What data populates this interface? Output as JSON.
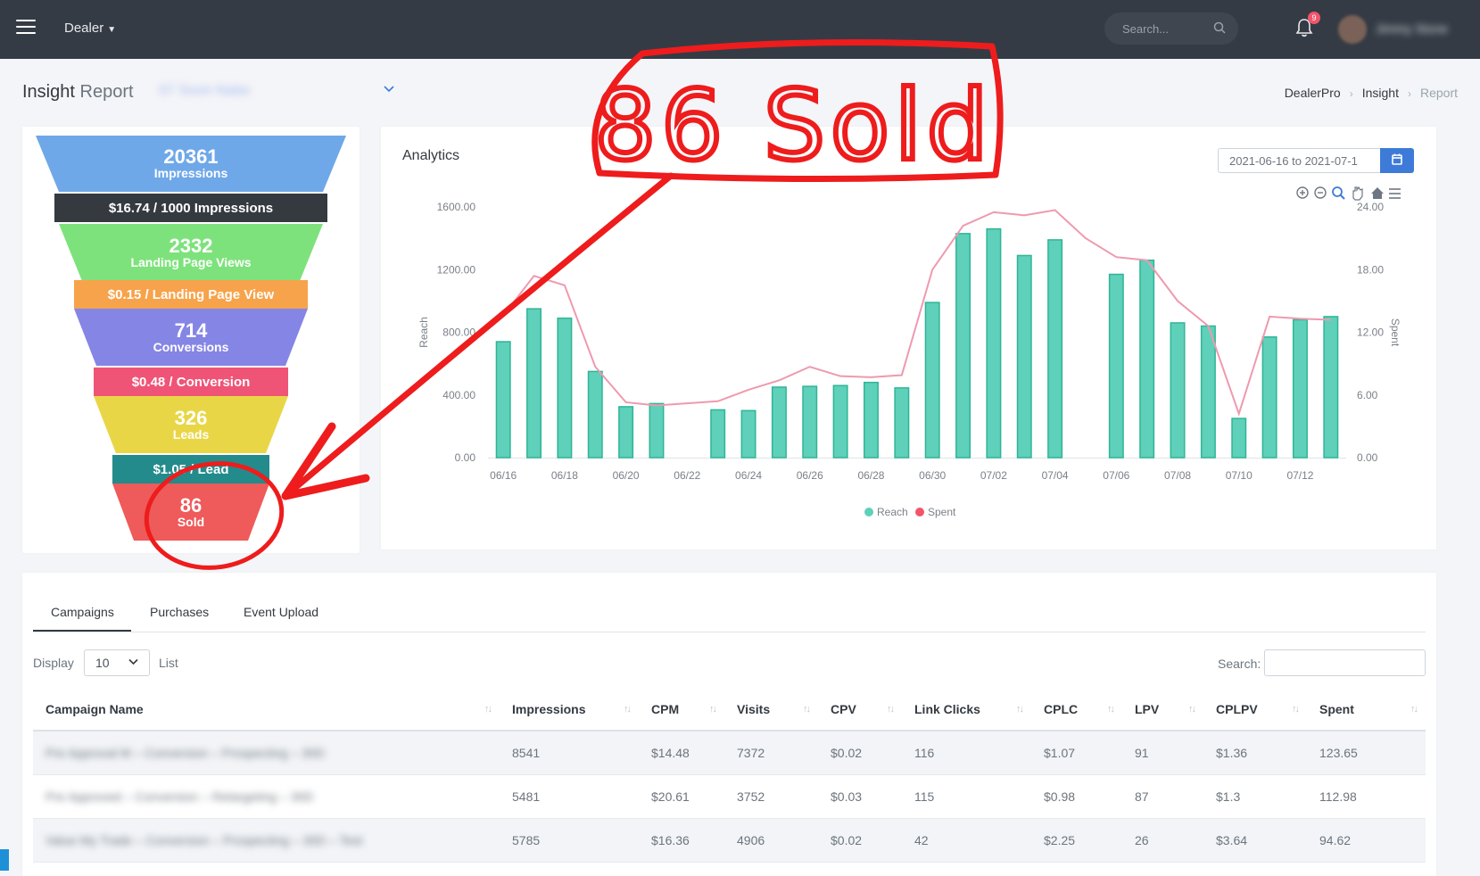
{
  "topbar": {
    "menu_label": "Dealer",
    "search_placeholder": "Search...",
    "notification_count": "9",
    "username": "Jimmy Stone"
  },
  "page": {
    "title_main": "Insight",
    "title_sub": "Report",
    "selected_report": "07 Soon Nabe",
    "breadcrumb": [
      "DealerPro",
      "Insight",
      "Report"
    ]
  },
  "funnel": {
    "stages": [
      {
        "value": "20361",
        "label": "Impressions",
        "color": "#6fa8e8"
      },
      {
        "value": "2332",
        "label": "Landing Page Views",
        "color": "#7ee27c"
      },
      {
        "value": "714",
        "label": "Conversions",
        "color": "#8585e6"
      },
      {
        "value": "326",
        "label": "Leads",
        "color": "#e9d646"
      },
      {
        "value": "86",
        "label": "Sold",
        "color": "#ef5a5a"
      }
    ],
    "rates": [
      {
        "text": "$16.74 / 1000 Impressions",
        "color": "#343a40"
      },
      {
        "text": "$0.15 / Landing Page View",
        "color": "#f7a34b"
      },
      {
        "text": "$0.48 / Conversion",
        "color": "#ef5477"
      },
      {
        "text": "$1.05 / Lead",
        "color": "#238b8b"
      }
    ]
  },
  "analytics": {
    "title": "Analytics",
    "date_range": "2021-06-16 to 2021-07-1"
  },
  "chart_data": {
    "type": "bar",
    "x": [
      "06/16",
      "06/17",
      "06/18",
      "06/19",
      "06/20",
      "06/21",
      "06/22",
      "06/23",
      "06/24",
      "06/25",
      "06/26",
      "06/27",
      "06/28",
      "06/29",
      "06/30",
      "07/01",
      "07/02",
      "07/03",
      "07/04",
      "07/05",
      "07/06",
      "07/07",
      "07/08",
      "07/09",
      "07/10",
      "07/11",
      "07/12",
      "07/13"
    ],
    "x_tick_labels": [
      "06/16",
      "06/18",
      "06/20",
      "06/22",
      "06/24",
      "06/26",
      "06/28",
      "06/30",
      "07/02",
      "07/04",
      "07/06",
      "07/08",
      "07/10",
      "07/12"
    ],
    "series": [
      {
        "name": "Reach",
        "type": "bar",
        "axis": "left",
        "color": "#5fd0ba",
        "values": [
          740,
          950,
          890,
          550,
          325,
          345,
          null,
          305,
          300,
          450,
          455,
          460,
          480,
          445,
          990,
          1430,
          1460,
          1290,
          1390,
          null,
          1170,
          1260,
          860,
          840,
          250,
          770,
          880,
          900
        ]
      },
      {
        "name": "Spent",
        "type": "line",
        "axis": "right",
        "color": "#ee9aae",
        "values": [
          13.6,
          17.4,
          16.5,
          8.7,
          5.3,
          5.0,
          5.2,
          5.4,
          6.5,
          7.4,
          8.7,
          7.8,
          7.7,
          7.9,
          18.0,
          22.2,
          23.5,
          23.2,
          23.7,
          21.0,
          19.2,
          18.9,
          15.0,
          12.6,
          4.2,
          13.5,
          13.3,
          13.2
        ]
      }
    ],
    "ylabel": "Reach",
    "y2label": "Spent",
    "ylim": [
      0,
      1600
    ],
    "y2lim": [
      0,
      24
    ],
    "y_ticks": [
      "0.00",
      "400.00",
      "800.00",
      "1200.00",
      "1600.00"
    ],
    "y2_ticks": [
      "0.00",
      "6.00",
      "12.00",
      "18.00",
      "24.00"
    ],
    "legend": [
      "Reach",
      "Spent"
    ],
    "legend_position": "bottom"
  },
  "table": {
    "tabs": [
      "Campaigns",
      "Purchases",
      "Event Upload"
    ],
    "display_label": "Display",
    "display_value": "10",
    "list_label": "List",
    "search_label": "Search:",
    "columns": [
      "Campaign Name",
      "Impressions",
      "CPM",
      "Visits",
      "CPV",
      "Link Clicks",
      "CPLC",
      "LPV",
      "CPLPV",
      "Spent"
    ],
    "sort_glyph": "↑↓",
    "rows": [
      [
        "Pre Approval M – Conversion – Prospecting – 30D",
        "8541",
        "$14.48",
        "7372",
        "$0.02",
        "116",
        "$1.07",
        "91",
        "$1.36",
        "123.65"
      ],
      [
        "Pre Approved – Conversion – Retargeting – 30D",
        "5481",
        "$20.61",
        "3752",
        "$0.03",
        "115",
        "$0.98",
        "87",
        "$1.3",
        "112.98"
      ],
      [
        "Value My Trade – Conversion – Prospecting – 30D – Test",
        "5785",
        "$16.36",
        "4906",
        "$0.02",
        "42",
        "$2.25",
        "26",
        "$3.64",
        "94.62"
      ]
    ]
  },
  "annotation": {
    "callout_text": "86 Sold",
    "color": "#ee1c1c"
  }
}
